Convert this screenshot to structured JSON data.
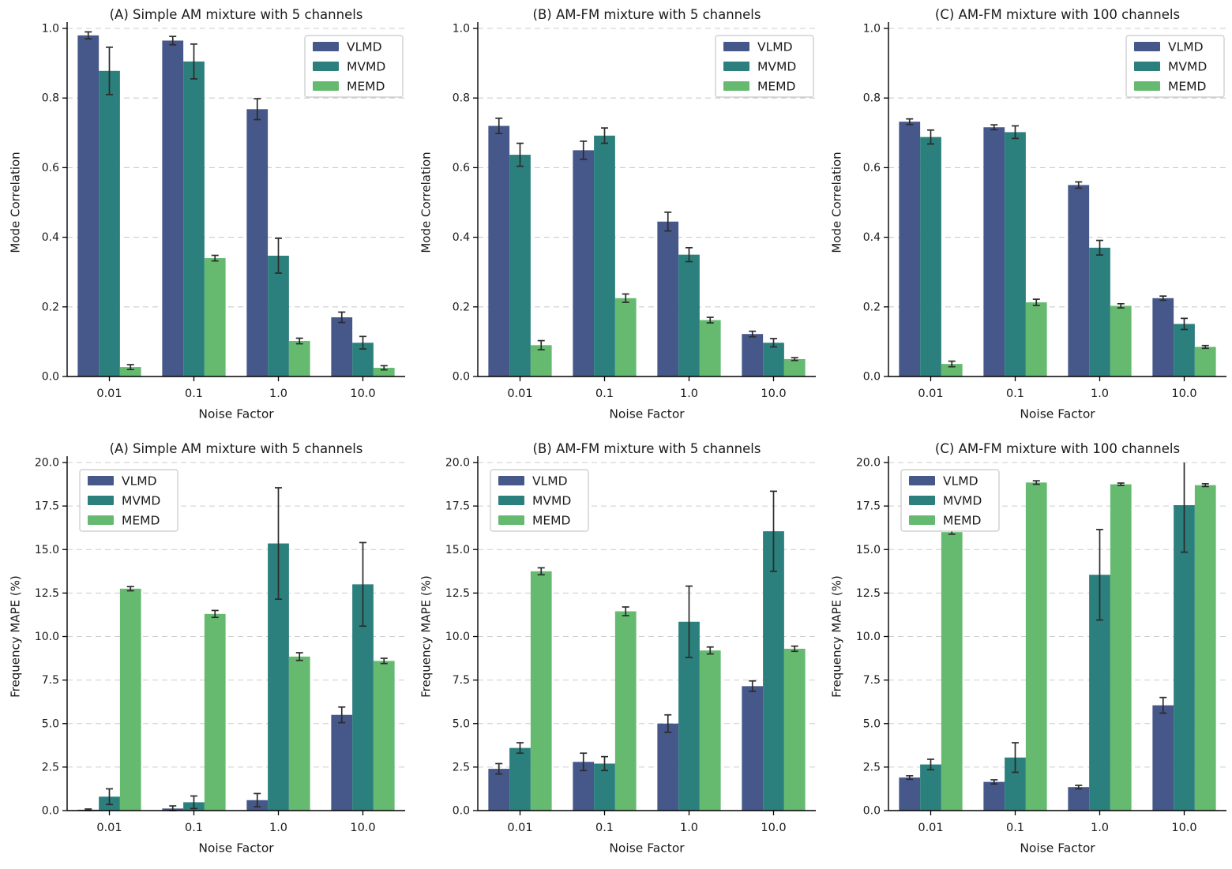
{
  "figure": {
    "background": "#ffffff"
  },
  "colors": {
    "VLMD": "#46588a",
    "MVMD": "#2b7f7d",
    "MEMD": "#66ba70",
    "errorbar": "#2b2b2b",
    "grid": "#cccccc",
    "axis": "#000000",
    "text": "#1a1a1a",
    "legend_border": "#c8c8c8",
    "background": "#ffffff"
  },
  "chart_data": [
    {
      "type": "bar",
      "title": "(A) Simple AM mixture with 5 channels",
      "xlabel": "Noise Factor",
      "ylabel": "Mode Correlation",
      "categories": [
        "0.01",
        "0.1",
        "1.0",
        "10.0"
      ],
      "ylim": [
        0,
        1.0
      ],
      "yticks": [
        "0.0",
        "0.2",
        "0.4",
        "0.6",
        "0.8",
        "1.0"
      ],
      "grid": "horizontal-dashed",
      "legend_position": "upper-right",
      "series": [
        {
          "name": "VLMD",
          "values": [
            0.98,
            0.965,
            0.768,
            0.17
          ],
          "errors": [
            0.01,
            0.012,
            0.03,
            0.015
          ]
        },
        {
          "name": "MVMD",
          "values": [
            0.878,
            0.905,
            0.347,
            0.097
          ],
          "errors": [
            0.068,
            0.05,
            0.05,
            0.018
          ]
        },
        {
          "name": "MEMD",
          "values": [
            0.027,
            0.34,
            0.102,
            0.025
          ],
          "errors": [
            0.007,
            0.008,
            0.008,
            0.006
          ]
        }
      ]
    },
    {
      "type": "bar",
      "title": "(B) AM-FM mixture with 5 channels",
      "xlabel": "Noise Factor",
      "ylabel": "Mode Correlation",
      "categories": [
        "0.01",
        "0.1",
        "1.0",
        "10.0"
      ],
      "ylim": [
        0,
        1.0
      ],
      "yticks": [
        "0.0",
        "0.2",
        "0.4",
        "0.6",
        "0.8",
        "1.0"
      ],
      "grid": "horizontal-dashed",
      "legend_position": "upper-right",
      "series": [
        {
          "name": "VLMD",
          "values": [
            0.72,
            0.65,
            0.445,
            0.122
          ],
          "errors": [
            0.022,
            0.026,
            0.027,
            0.008
          ]
        },
        {
          "name": "MVMD",
          "values": [
            0.637,
            0.692,
            0.35,
            0.097
          ],
          "errors": [
            0.033,
            0.022,
            0.02,
            0.012
          ]
        },
        {
          "name": "MEMD",
          "values": [
            0.09,
            0.225,
            0.162,
            0.05
          ],
          "errors": [
            0.013,
            0.012,
            0.008,
            0.004
          ]
        }
      ]
    },
    {
      "type": "bar",
      "title": "(C) AM-FM mixture with 100 channels",
      "xlabel": "Noise Factor",
      "ylabel": "Mode Correlation",
      "categories": [
        "0.01",
        "0.1",
        "1.0",
        "10.0"
      ],
      "ylim": [
        0,
        1.0
      ],
      "yticks": [
        "0.0",
        "0.2",
        "0.4",
        "0.6",
        "0.8",
        "1.0"
      ],
      "grid": "horizontal-dashed",
      "legend_position": "upper-right",
      "series": [
        {
          "name": "VLMD",
          "values": [
            0.732,
            0.716,
            0.55,
            0.225
          ],
          "errors": [
            0.008,
            0.007,
            0.009,
            0.006
          ]
        },
        {
          "name": "MVMD",
          "values": [
            0.688,
            0.702,
            0.37,
            0.151
          ],
          "errors": [
            0.02,
            0.018,
            0.021,
            0.016
          ]
        },
        {
          "name": "MEMD",
          "values": [
            0.036,
            0.213,
            0.203,
            0.085
          ],
          "errors": [
            0.008,
            0.009,
            0.006,
            0.004
          ]
        }
      ]
    },
    {
      "type": "bar",
      "title": "(A) Simple AM mixture with 5 channels",
      "xlabel": "Noise Factor",
      "ylabel": "Frequency MAPE (%)",
      "categories": [
        "0.01",
        "0.1",
        "1.0",
        "10.0"
      ],
      "ylim": [
        0,
        20.0
      ],
      "yticks": [
        "0.0",
        "2.5",
        "5.0",
        "7.5",
        "10.0",
        "12.5",
        "15.0",
        "17.5",
        "20.0"
      ],
      "grid": "horizontal-dashed",
      "legend_position": "upper-left",
      "series": [
        {
          "name": "VLMD",
          "values": [
            0.05,
            0.12,
            0.6,
            5.5
          ],
          "errors": [
            0.04,
            0.15,
            0.38,
            0.45
          ]
        },
        {
          "name": "MVMD",
          "values": [
            0.8,
            0.48,
            15.35,
            13.0
          ],
          "errors": [
            0.45,
            0.36,
            3.2,
            2.4
          ]
        },
        {
          "name": "MEMD",
          "values": [
            12.75,
            11.3,
            8.85,
            8.6
          ],
          "errors": [
            0.12,
            0.2,
            0.22,
            0.15
          ]
        }
      ]
    },
    {
      "type": "bar",
      "title": "(B) AM-FM mixture with 5 channels",
      "xlabel": "Noise Factor",
      "ylabel": "Frequency MAPE (%)",
      "categories": [
        "0.01",
        "0.1",
        "1.0",
        "10.0"
      ],
      "ylim": [
        0,
        20.0
      ],
      "yticks": [
        "0.0",
        "2.5",
        "5.0",
        "7.5",
        "10.0",
        "12.5",
        "15.0",
        "17.5",
        "20.0"
      ],
      "grid": "horizontal-dashed",
      "legend_position": "upper-left",
      "series": [
        {
          "name": "VLMD",
          "values": [
            2.4,
            2.8,
            5.0,
            7.15
          ],
          "errors": [
            0.3,
            0.5,
            0.5,
            0.3
          ]
        },
        {
          "name": "MVMD",
          "values": [
            3.6,
            2.7,
            10.85,
            16.05
          ],
          "errors": [
            0.3,
            0.4,
            2.05,
            2.3
          ]
        },
        {
          "name": "MEMD",
          "values": [
            13.75,
            11.45,
            9.2,
            9.3
          ],
          "errors": [
            0.2,
            0.25,
            0.2,
            0.15
          ]
        }
      ]
    },
    {
      "type": "bar",
      "title": "(C) AM-FM mixture with 100 channels",
      "xlabel": "Noise Factor",
      "ylabel": "Frequency MAPE (%)",
      "categories": [
        "0.01",
        "0.1",
        "1.0",
        "10.0"
      ],
      "ylim": [
        0,
        20.0
      ],
      "yticks": [
        "0.0",
        "2.5",
        "5.0",
        "7.5",
        "10.0",
        "12.5",
        "15.0",
        "17.5",
        "20.0"
      ],
      "grid": "horizontal-dashed",
      "legend_position": "upper-left",
      "series": [
        {
          "name": "VLMD",
          "values": [
            1.9,
            1.65,
            1.35,
            6.05
          ],
          "errors": [
            0.1,
            0.12,
            0.1,
            0.45
          ]
        },
        {
          "name": "MVMD",
          "values": [
            2.65,
            3.05,
            13.55,
            17.55
          ],
          "errors": [
            0.3,
            0.85,
            2.6,
            2.7
          ]
        },
        {
          "name": "MEMD",
          "values": [
            16.0,
            18.85,
            18.75,
            18.7
          ],
          "errors": [
            0.12,
            0.1,
            0.07,
            0.08
          ]
        }
      ]
    }
  ]
}
